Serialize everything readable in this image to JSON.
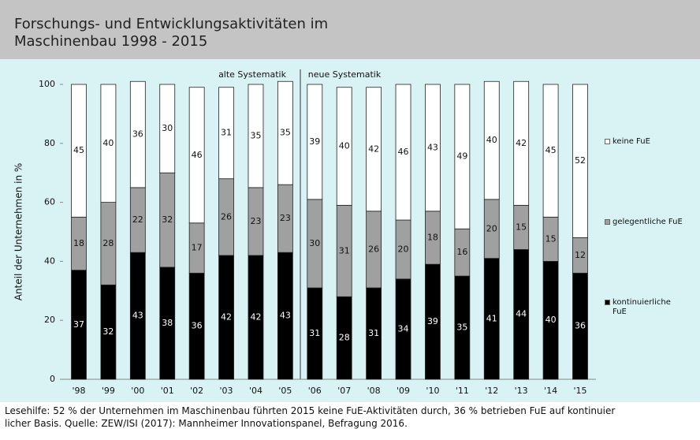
{
  "chart_data": {
    "type": "stacked_bar",
    "title": "Forschungs- und Entwicklungsaktivitäten im Maschinenbau 1998 - 2015",
    "y_label": "Anteil der Unternehmen in %",
    "categories": [
      "'98",
      "'99",
      "'00",
      "'01",
      "'02",
      "'03",
      "'04",
      "'05",
      "'06",
      "'07",
      "'08",
      "'09",
      "'10",
      "'11",
      "'12",
      "'13",
      "'14",
      "'15"
    ],
    "series": [
      {
        "name": "kontinuierliche FuE",
        "color": "#000000",
        "values": [
          37,
          32,
          43,
          38,
          36,
          42,
          42,
          43,
          31,
          28,
          31,
          34,
          39,
          35,
          41,
          44,
          40,
          36
        ]
      },
      {
        "name": "gelegentliche FuE",
        "color": "#a0a0a0",
        "values": [
          18,
          28,
          22,
          32,
          17,
          26,
          23,
          23,
          30,
          31,
          26,
          20,
          18,
          16,
          20,
          15,
          15,
          12
        ]
      },
      {
        "name": "keine FuE",
        "color": "#ffffff",
        "values": [
          45,
          40,
          36,
          30,
          46,
          31,
          35,
          35,
          39,
          40,
          42,
          46,
          43,
          49,
          40,
          42,
          45,
          52
        ]
      }
    ],
    "annotations": [
      "alte Systematik",
      "neue Systematik"
    ],
    "ylim": [
      0,
      100
    ],
    "yticks": [
      0,
      20,
      40,
      60,
      80,
      100
    ],
    "legend": "right",
    "caption": [
      "Lesehilfe: 52 % der Unternehmen im Maschinenbau führten 2015 keine FuE-Aktivitäten durch, 36 % betrieben FuE auf kontinuier",
      "licher Basis. Quelle: ZEW/ISI (2017): Mannheimer Innovationspanel, Befragung 2016."
    ]
  }
}
